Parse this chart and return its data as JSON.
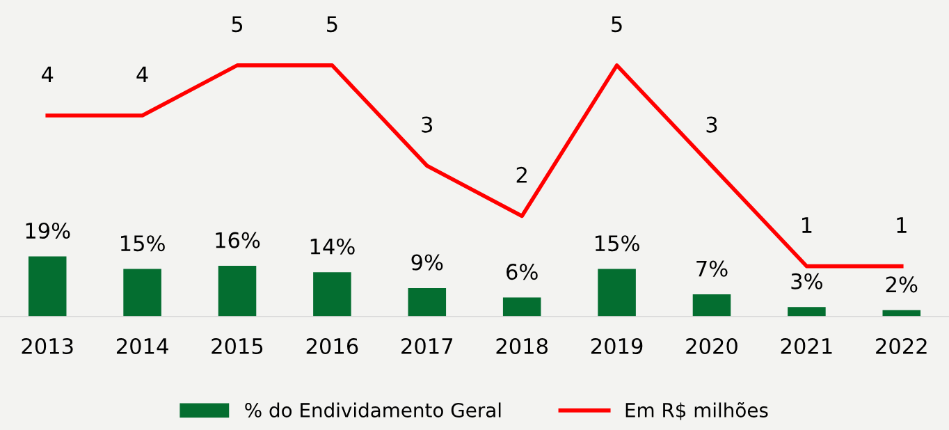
{
  "chart_data": {
    "type": "bar",
    "categories": [
      "2013",
      "2014",
      "2015",
      "2016",
      "2017",
      "2018",
      "2019",
      "2020",
      "2021",
      "2022"
    ],
    "series": [
      {
        "name": "% do Endividamento Geral",
        "color": "#046e30",
        "values": [
          19,
          15,
          16,
          14,
          9,
          6,
          15,
          7,
          3,
          2
        ],
        "value_labels": [
          "19%",
          "15%",
          "16%",
          "14%",
          "9%",
          "6%",
          "15%",
          "7%",
          "3%",
          "2%"
        ]
      },
      {
        "name": "Em R$ milhões",
        "type": "line",
        "axis": "y2",
        "color": "#ff0000",
        "values": [
          4,
          4,
          5,
          5,
          3,
          2,
          5,
          3,
          1,
          1
        ]
      }
    ],
    "ylim": [
      0,
      100
    ],
    "y2lim": [
      0,
      6.3
    ],
    "data_labels": true,
    "tick_labels": "x",
    "grid": false,
    "legend": "bottom",
    "marker": "none",
    "line_style": "solid"
  }
}
